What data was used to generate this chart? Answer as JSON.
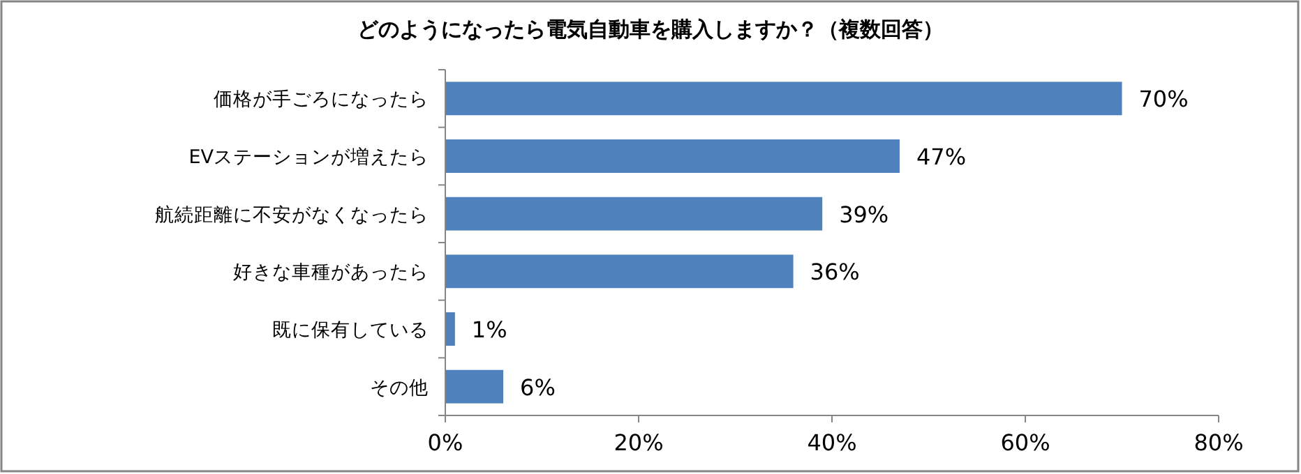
{
  "chart_data": {
    "type": "bar",
    "orientation": "horizontal",
    "title": "どのようになったら電気自動車を購入しますか？（複数回答）",
    "categories": [
      "価格が手ごろになったら",
      "EVステーションが増えたら",
      "航続距離に不安がなくなったら",
      "好きな車種があったら",
      "既に保有している",
      "その他"
    ],
    "values": [
      70,
      47,
      39,
      36,
      1,
      6
    ],
    "value_labels": [
      "70%",
      "47%",
      "39%",
      "36%",
      "1%",
      "6%"
    ],
    "color": "#4f81bd",
    "xlim": [
      0,
      80
    ],
    "xticks": [
      {
        "value": 0,
        "label": "0%"
      },
      {
        "value": 20,
        "label": "20%"
      },
      {
        "value": 40,
        "label": "40%"
      },
      {
        "value": 60,
        "label": "60%"
      },
      {
        "value": 80,
        "label": "80%"
      }
    ],
    "grid": false
  }
}
